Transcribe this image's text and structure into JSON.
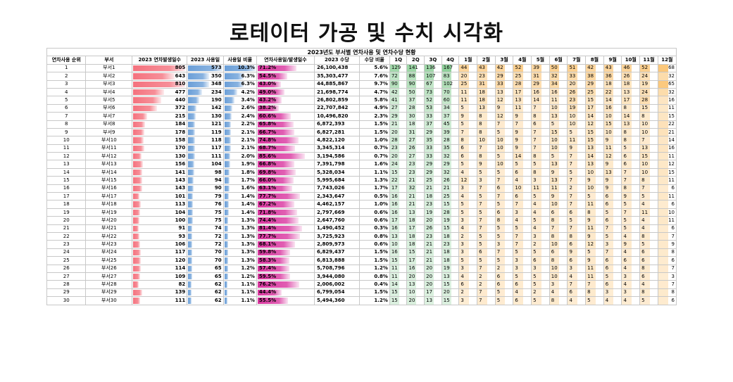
{
  "page_title": "로테이터 가공 및 수치 시각화",
  "sheet_title": "2023년도 부서별 연차사용 및 연차수당 현황",
  "headers": [
    "연차사용 순위",
    "부서",
    "2023 연차발생일수",
    "2023 사용일",
    "사용일 비율",
    "연차사용일/발생일수",
    "2023 수당",
    "수당 비율",
    "1Q",
    "2Q",
    "3Q",
    "4Q",
    "1월",
    "2월",
    "3월",
    "4월",
    "5월",
    "6월",
    "7월",
    "8월",
    "9월",
    "10월",
    "11월",
    "12월"
  ],
  "colors": {
    "red": "#f4727e",
    "blue": "#6b9fd8",
    "magenta": "#d9369f",
    "green": "#8fd19a",
    "orange": "#fbc77a",
    "header_border": "#666666"
  },
  "rows": [
    [
      "1",
      "부서1",
      "805",
      "573",
      "10.3%",
      "71.2%",
      "26,100,438",
      "5.6%",
      "129",
      "141",
      "136",
      "167",
      "44",
      "43",
      "42",
      "52",
      "39",
      "50",
      "51",
      "42",
      "43",
      "46",
      "52",
      "68"
    ],
    [
      "2",
      "부서2",
      "643",
      "350",
      "6.3%",
      "54.5%",
      "35,303,477",
      "7.6%",
      "72",
      "88",
      "107",
      "83",
      "20",
      "23",
      "29",
      "25",
      "31",
      "32",
      "33",
      "38",
      "36",
      "26",
      "24",
      "32"
    ],
    [
      "3",
      "부서3",
      "810",
      "348",
      "6.3%",
      "43.0%",
      "44,885,867",
      "9.7%",
      "90",
      "90",
      "67",
      "102",
      "25",
      "31",
      "33",
      "28",
      "29",
      "34",
      "20",
      "29",
      "18",
      "18",
      "19",
      "65"
    ],
    [
      "4",
      "부서4",
      "477",
      "234",
      "4.2%",
      "49.0%",
      "21,698,774",
      "4.7%",
      "42",
      "50",
      "73",
      "70",
      "11",
      "18",
      "13",
      "17",
      "16",
      "16",
      "26",
      "25",
      "22",
      "13",
      "24",
      "32"
    ],
    [
      "5",
      "부서5",
      "440",
      "190",
      "3.4%",
      "43.2%",
      "26,802,859",
      "5.8%",
      "41",
      "37",
      "52",
      "60",
      "11",
      "18",
      "12",
      "13",
      "14",
      "11",
      "23",
      "15",
      "14",
      "17",
      "28",
      "16"
    ],
    [
      "6",
      "부서6",
      "372",
      "142",
      "2.6%",
      "38.2%",
      "22,707,842",
      "4.9%",
      "27",
      "28",
      "53",
      "34",
      "5",
      "13",
      "9",
      "11",
      "7",
      "10",
      "19",
      "17",
      "16",
      "8",
      "15",
      "11"
    ],
    [
      "7",
      "부서7",
      "215",
      "130",
      "2.4%",
      "60.6%",
      "10,496,820",
      "2.3%",
      "29",
      "30",
      "33",
      "37",
      "9",
      "8",
      "12",
      "9",
      "8",
      "13",
      "10",
      "14",
      "10",
      "14",
      "8",
      "15"
    ],
    [
      "8",
      "부서8",
      "184",
      "121",
      "2.2%",
      "65.8%",
      "6,872,393",
      "1.5%",
      "21",
      "18",
      "37",
      "45",
      "5",
      "8",
      "7",
      "7",
      "6",
      "5",
      "10",
      "12",
      "15",
      "13",
      "10",
      "22"
    ],
    [
      "9",
      "부서9",
      "178",
      "119",
      "2.1%",
      "66.7%",
      "6,827,281",
      "1.5%",
      "20",
      "31",
      "29",
      "39",
      "7",
      "8",
      "5",
      "9",
      "7",
      "15",
      "5",
      "15",
      "10",
      "8",
      "10",
      "21"
    ],
    [
      "10",
      "부서10",
      "158",
      "118",
      "2.1%",
      "74.8%",
      "4,822,120",
      "1.0%",
      "28",
      "27",
      "35",
      "28",
      "8",
      "10",
      "10",
      "9",
      "7",
      "10",
      "11",
      "15",
      "9",
      "8",
      "7",
      "14"
    ],
    [
      "11",
      "부서11",
      "170",
      "117",
      "2.1%",
      "68.7%",
      "3,345,314",
      "0.7%",
      "23",
      "26",
      "33",
      "35",
      "6",
      "7",
      "10",
      "9",
      "7",
      "10",
      "9",
      "13",
      "11",
      "5",
      "13",
      "16"
    ],
    [
      "12",
      "부서12",
      "130",
      "111",
      "2.0%",
      "85.6%",
      "3,194,586",
      "0.7%",
      "20",
      "27",
      "33",
      "32",
      "6",
      "8",
      "5",
      "14",
      "8",
      "5",
      "7",
      "14",
      "12",
      "6",
      "15",
      "11"
    ],
    [
      "13",
      "부서13",
      "156",
      "104",
      "1.9%",
      "66.8%",
      "7,391,798",
      "1.6%",
      "24",
      "23",
      "29",
      "29",
      "5",
      "9",
      "10",
      "5",
      "5",
      "13",
      "7",
      "13",
      "9",
      "6",
      "10",
      "12"
    ],
    [
      "14",
      "부서14",
      "141",
      "98",
      "1.8%",
      "69.8%",
      "5,328,034",
      "1.1%",
      "15",
      "23",
      "29",
      "32",
      "4",
      "5",
      "5",
      "6",
      "8",
      "9",
      "5",
      "10",
      "13",
      "7",
      "10",
      "15"
    ],
    [
      "15",
      "부서15",
      "143",
      "94",
      "1.7%",
      "66.0%",
      "5,995,684",
      "1.3%",
      "22",
      "21",
      "25",
      "26",
      "12",
      "3",
      "7",
      "4",
      "3",
      "13",
      "7",
      "9",
      "9",
      "7",
      "8",
      "11"
    ],
    [
      "16",
      "부서16",
      "143",
      "90",
      "1.6%",
      "63.1%",
      "7,743,026",
      "1.7%",
      "17",
      "32",
      "21",
      "21",
      "3",
      "7",
      "6",
      "10",
      "11",
      "11",
      "2",
      "10",
      "9",
      "8",
      "7",
      "6"
    ],
    [
      "17",
      "부서17",
      "101",
      "79",
      "1.4%",
      "77.7%",
      "2,343,647",
      "0.5%",
      "16",
      "21",
      "18",
      "25",
      "4",
      "5",
      "7",
      "6",
      "5",
      "9",
      "7",
      "5",
      "6",
      "9",
      "5",
      "11"
    ],
    [
      "18",
      "부서18",
      "113",
      "76",
      "1.4%",
      "67.2%",
      "4,462,157",
      "1.0%",
      "16",
      "21",
      "23",
      "15",
      "5",
      "7",
      "5",
      "7",
      "4",
      "10",
      "7",
      "11",
      "6",
      "5",
      "4",
      "6"
    ],
    [
      "19",
      "부서19",
      "104",
      "75",
      "1.4%",
      "71.8%",
      "2,797,669",
      "0.6%",
      "16",
      "13",
      "19",
      "28",
      "5",
      "5",
      "6",
      "3",
      "4",
      "6",
      "6",
      "8",
      "5",
      "7",
      "11",
      "10"
    ],
    [
      "20",
      "부서20",
      "100",
      "75",
      "1.3%",
      "74.4%",
      "2,647,760",
      "0.6%",
      "17",
      "18",
      "20",
      "19",
      "3",
      "7",
      "8",
      "4",
      "5",
      "8",
      "5",
      "9",
      "6",
      "5",
      "4",
      "11"
    ],
    [
      "21",
      "부서21",
      "91",
      "74",
      "1.3%",
      "81.4%",
      "1,490,452",
      "0.3%",
      "16",
      "17",
      "26",
      "15",
      "4",
      "7",
      "5",
      "5",
      "4",
      "7",
      "7",
      "11",
      "7",
      "5",
      "4",
      "6"
    ],
    [
      "22",
      "부서22",
      "93",
      "72",
      "1.3%",
      "77.7%",
      "3,725,923",
      "0.8%",
      "13",
      "18",
      "23",
      "18",
      "2",
      "5",
      "5",
      "7",
      "3",
      "8",
      "8",
      "9",
      "5",
      "4",
      "8",
      "7"
    ],
    [
      "23",
      "부서23",
      "106",
      "72",
      "1.3%",
      "68.1%",
      "2,809,973",
      "0.6%",
      "10",
      "18",
      "21",
      "23",
      "3",
      "5",
      "3",
      "7",
      "2",
      "10",
      "6",
      "12",
      "3",
      "9",
      "5",
      "9"
    ],
    [
      "24",
      "부서24",
      "117",
      "70",
      "1.3%",
      "59.8%",
      "6,829,437",
      "1.5%",
      "16",
      "15",
      "21",
      "18",
      "3",
      "6",
      "7",
      "5",
      "5",
      "6",
      "9",
      "5",
      "7",
      "4",
      "6",
      "8"
    ],
    [
      "25",
      "부서25",
      "120",
      "70",
      "1.3%",
      "58.3%",
      "6,813,888",
      "1.5%",
      "15",
      "17",
      "21",
      "18",
      "5",
      "5",
      "5",
      "3",
      "6",
      "8",
      "6",
      "9",
      "6",
      "6",
      "6",
      "6"
    ],
    [
      "26",
      "부서26",
      "114",
      "65",
      "1.2%",
      "57.4%",
      "5,708,796",
      "1.2%",
      "11",
      "16",
      "20",
      "19",
      "3",
      "7",
      "2",
      "3",
      "3",
      "10",
      "3",
      "11",
      "6",
      "4",
      "8",
      "7"
    ],
    [
      "27",
      "부서27",
      "109",
      "65",
      "1.2%",
      "59.5%",
      "3,944,080",
      "0.8%",
      "11",
      "20",
      "20",
      "13",
      "4",
      "2",
      "6",
      "5",
      "5",
      "10",
      "4",
      "11",
      "5",
      "3",
      "6",
      "3"
    ],
    [
      "28",
      "부서28",
      "82",
      "62",
      "1.1%",
      "76.2%",
      "2,006,002",
      "0.4%",
      "14",
      "13",
      "20",
      "15",
      "6",
      "2",
      "6",
      "6",
      "5",
      "3",
      "7",
      "7",
      "6",
      "4",
      "4",
      "7"
    ],
    [
      "29",
      "부서29",
      "139",
      "62",
      "1.1%",
      "44.4%",
      "6,799,054",
      "1.5%",
      "15",
      "10",
      "17",
      "20",
      "2",
      "7",
      "5",
      "4",
      "2",
      "4",
      "6",
      "8",
      "3",
      "3",
      "8",
      "8"
    ],
    [
      "30",
      "부서30",
      "111",
      "62",
      "1.1%",
      "55.5%",
      "5,494,360",
      "1.2%",
      "15",
      "20",
      "13",
      "15",
      "3",
      "7",
      "5",
      "6",
      "5",
      "8",
      "4",
      "5",
      "4",
      "4",
      "5",
      "6"
    ]
  ]
}
